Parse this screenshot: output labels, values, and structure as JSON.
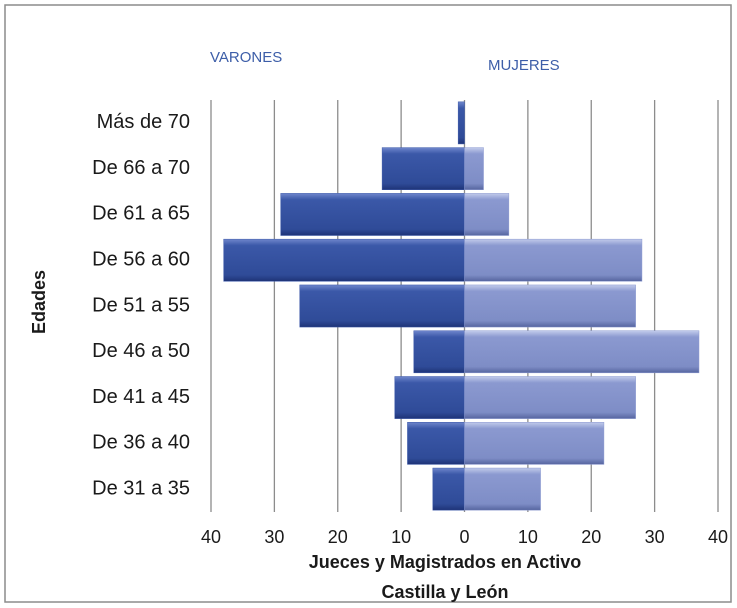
{
  "chart_data": {
    "type": "pyramid",
    "side_labels": [
      "VARONES",
      "MUJERES"
    ],
    "ylabel": "Edades",
    "xlabel_lines": [
      "Jueces y Magistrados   en Activo",
      "Castilla y León"
    ],
    "categories": [
      "Más de 70",
      "De 66 a 70",
      "De 61 a 65",
      "De 56 a 60",
      "De 51 a 55",
      "De 46 a 50",
      "De 41 a 45",
      "De 36 a 40",
      "De 31 a 35"
    ],
    "series": [
      {
        "name": "VARONES",
        "color": "#3b58a8",
        "values": [
          -1,
          -13,
          -29,
          -38,
          -26,
          -8,
          -11,
          -9,
          -5
        ]
      },
      {
        "name": "MUJERES",
        "color": "#8b99d0",
        "values": [
          0,
          3,
          7,
          28,
          27,
          37,
          27,
          22,
          12
        ]
      }
    ],
    "xlim": [
      -40,
      40
    ],
    "xticks": [
      {
        "value": -40,
        "label": "40"
      },
      {
        "value": -30,
        "label": "30"
      },
      {
        "value": -20,
        "label": "20"
      },
      {
        "value": -10,
        "label": "10"
      },
      0,
      10,
      20,
      30,
      40
    ],
    "grid": true
  }
}
